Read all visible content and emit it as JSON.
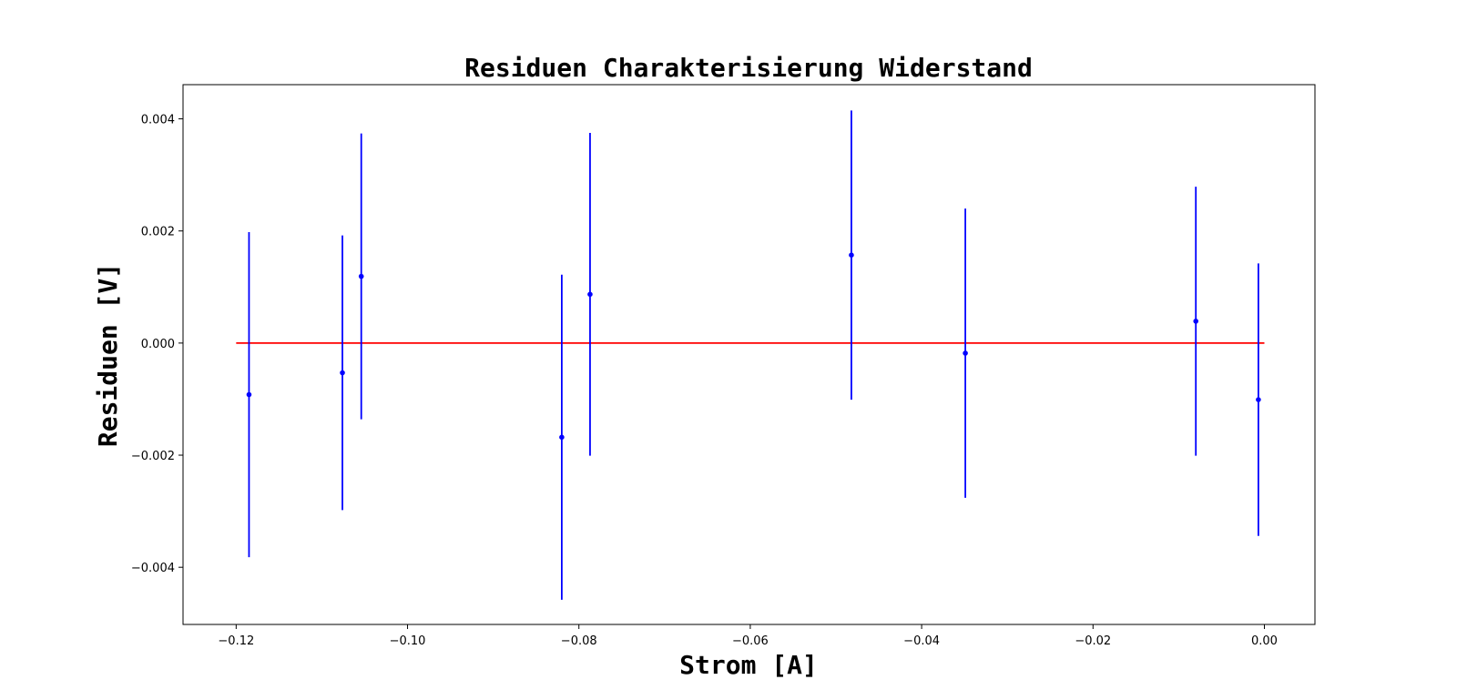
{
  "chart_data": {
    "type": "scatter",
    "title": "Residuen Charakterisierung Widerstand",
    "xlabel": "Strom [A]",
    "ylabel": "Residuen [V]",
    "xlim": [
      -0.1262,
      0.0059
    ],
    "ylim": [
      -0.00502,
      0.00461
    ],
    "xticks": [
      -0.12,
      -0.1,
      -0.08,
      -0.06,
      -0.04,
      -0.02,
      0.0
    ],
    "xtick_labels": [
      "−0.12",
      "−0.10",
      "−0.08",
      "−0.06",
      "−0.04",
      "−0.02",
      "0.00"
    ],
    "yticks": [
      -0.004,
      -0.002,
      0.0,
      0.002,
      0.004
    ],
    "ytick_labels": [
      "−0.004",
      "−0.002",
      "0.000",
      "0.002",
      "0.004"
    ],
    "grid": false,
    "colors": {
      "points": "#0000ff",
      "reference_line": "#ff0000"
    },
    "reference_line": {
      "y": 0,
      "x_from": -0.12,
      "x_to": 0.0
    },
    "points": [
      {
        "x": -0.1185,
        "y": -0.00092,
        "yerr": 0.0029
      },
      {
        "x": -0.1076,
        "y": -0.00053,
        "yerr": 0.00245
      },
      {
        "x": -0.1054,
        "y": 0.00119,
        "yerr": 0.00255
      },
      {
        "x": -0.082,
        "y": -0.00168,
        "yerr": 0.0029
      },
      {
        "x": -0.0787,
        "y": 0.00087,
        "yerr": 0.00288
      },
      {
        "x": -0.0482,
        "y": 0.00157,
        "yerr": 0.00258
      },
      {
        "x": -0.0349,
        "y": -0.00018,
        "yerr": 0.00258
      },
      {
        "x": -0.008,
        "y": 0.00039,
        "yerr": 0.0024
      },
      {
        "x": -0.0007,
        "y": -0.00101,
        "yerr": 0.00243
      }
    ]
  }
}
